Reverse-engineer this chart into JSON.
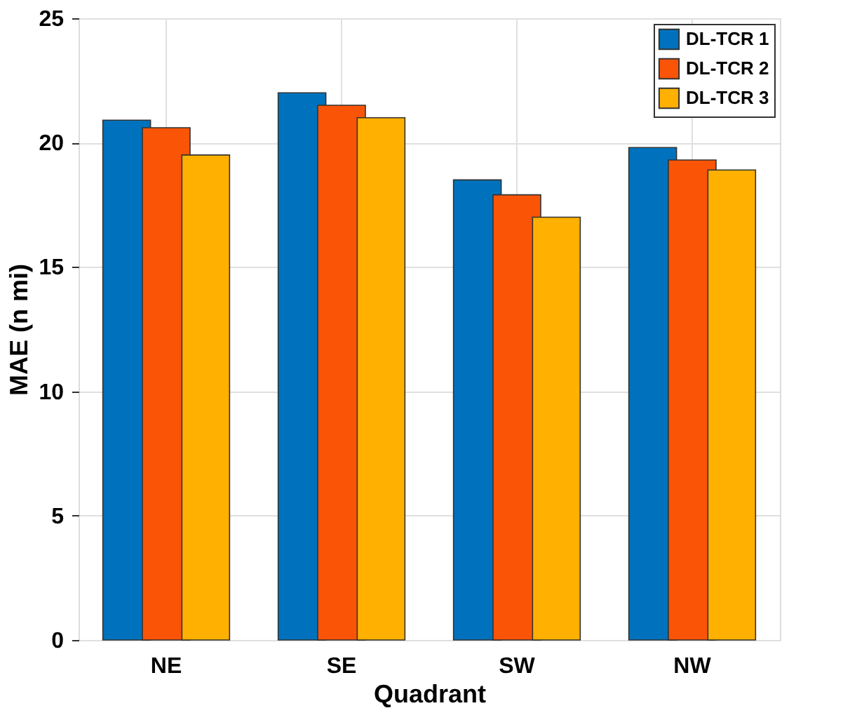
{
  "chart_data": {
    "type": "bar",
    "xlabel": "Quadrant",
    "ylabel": "MAE (n mi)",
    "categories": [
      "NE",
      "SE",
      "SW",
      "NW"
    ],
    "series": [
      {
        "name": "DL-TCR 1",
        "color": "#0072bd",
        "values": [
          20.9,
          22.0,
          18.5,
          19.8
        ]
      },
      {
        "name": "DL-TCR 2",
        "color": "#fa5407",
        "values": [
          20.6,
          21.5,
          17.9,
          19.3
        ]
      },
      {
        "name": "DL-TCR 3",
        "color": "#ffb000",
        "values": [
          19.5,
          21.0,
          17.0,
          18.9
        ]
      }
    ],
    "ylim": [
      0,
      25
    ],
    "yticks": [
      0,
      5,
      10,
      15,
      20,
      25
    ],
    "grid": true,
    "legend": "top right"
  }
}
